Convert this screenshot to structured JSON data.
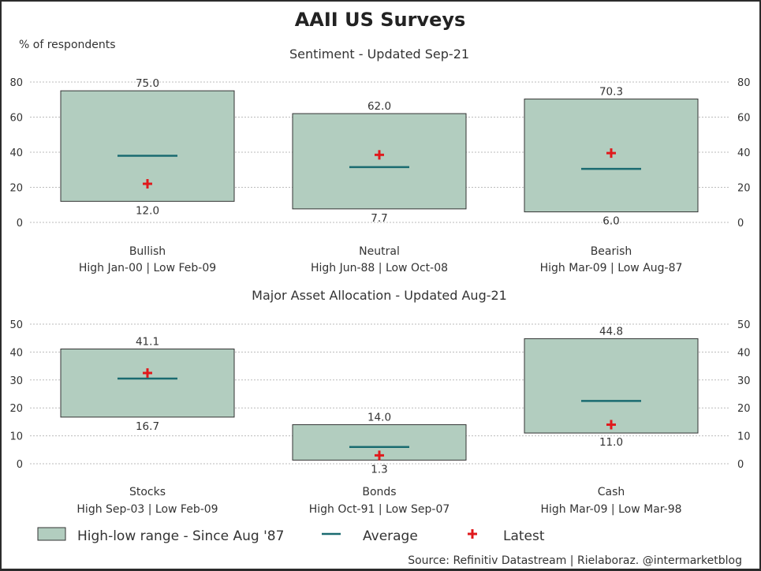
{
  "title": "AAII US Surveys",
  "ylabel": "% of respondents",
  "source": "Source: Refinitiv Datastream | Rielaboraz. @intermarketblog",
  "colors": {
    "box_fill": "#b2cdbf",
    "box_stroke": "#333333",
    "average": "#1a6b70",
    "latest": "#e0191c",
    "grid": "#bbbbbb"
  },
  "legend": [
    {
      "key": "range",
      "label": "High-low range - Since Aug '87"
    },
    {
      "key": "average",
      "label": "Average"
    },
    {
      "key": "latest",
      "label": "Latest"
    }
  ],
  "chart_data": [
    {
      "type": "range-box",
      "title": "Sentiment - Updated Sep-21",
      "ylim": [
        0,
        80
      ],
      "yticks": [
        0,
        20,
        40,
        60,
        80
      ],
      "grid": true,
      "categories": [
        {
          "name": "Bullish",
          "sub": "High Jan-00 | Low Feb-09",
          "high": 75.0,
          "low": 12.0,
          "high_label": "75.0",
          "low_label": "12.0",
          "average": 38,
          "latest": 22
        },
        {
          "name": "Neutral",
          "sub": "High Jun-88 | Low Oct-08",
          "high": 62.0,
          "low": 7.7,
          "high_label": "62.0",
          "low_label": "7.7",
          "average": 31.5,
          "latest": 38.5
        },
        {
          "name": "Bearish",
          "sub": "High Mar-09 | Low Aug-87",
          "high": 70.3,
          "low": 6.0,
          "high_label": "70.3",
          "low_label": "6.0",
          "average": 30.5,
          "latest": 39.5
        }
      ]
    },
    {
      "type": "range-box",
      "title": "Major Asset Allocation - Updated Aug-21",
      "ylim": [
        0,
        50
      ],
      "yticks": [
        0,
        10,
        20,
        30,
        40,
        50
      ],
      "grid": true,
      "categories": [
        {
          "name": "Stocks",
          "sub": "High Sep-03 | Low Feb-09",
          "high": 41.1,
          "low": 16.7,
          "high_label": "41.1",
          "low_label": "16.7",
          "average": 30.5,
          "latest": 32.5
        },
        {
          "name": "Bonds",
          "sub": "High Oct-91 | Low Sep-07",
          "high": 14.0,
          "low": 1.3,
          "high_label": "14.0",
          "low_label": "1.3",
          "average": 6,
          "latest": 3
        },
        {
          "name": "Cash",
          "sub": "High Mar-09 | Low Mar-98",
          "high": 44.8,
          "low": 11.0,
          "high_label": "44.8",
          "low_label": "11.0",
          "average": 22.5,
          "latest": 14
        }
      ]
    }
  ]
}
